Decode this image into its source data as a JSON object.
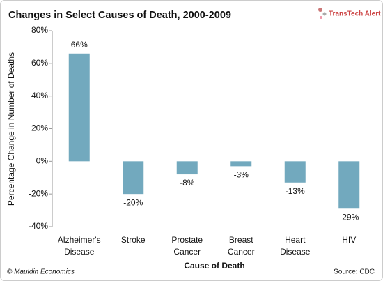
{
  "chart_data": {
    "type": "bar",
    "title": "Changes in Select Causes of Death, 2000-2009",
    "logo": "TransTech Alert",
    "y_label": "Percentage Change in Number of Deaths",
    "x_label": "Cause of Death",
    "footer_left": "© Mauldin Economics",
    "footer_right": "Source: CDC",
    "categories": [
      "Alzheimer's Disease",
      "Stroke",
      "Prostate Cancer",
      "Breast Cancer",
      "Heart Disease",
      "HIV"
    ],
    "values": [
      66,
      -20,
      -8,
      -3,
      -13,
      -29
    ],
    "value_labels": [
      "66%",
      "-20%",
      "-8%",
      "-3%",
      "-13%",
      "-29%"
    ],
    "color": "#72a9be",
    "ylim": [
      -40,
      80
    ],
    "yticks": [
      {
        "value": -40,
        "label": "-40%"
      },
      {
        "value": -20,
        "label": "-20%"
      },
      {
        "value": 0,
        "label": "0%"
      },
      {
        "value": 20,
        "label": "20%"
      },
      {
        "value": 40,
        "label": "40%"
      },
      {
        "value": 60,
        "label": "60%"
      },
      {
        "value": 80,
        "label": "80%"
      }
    ],
    "grid": false
  }
}
